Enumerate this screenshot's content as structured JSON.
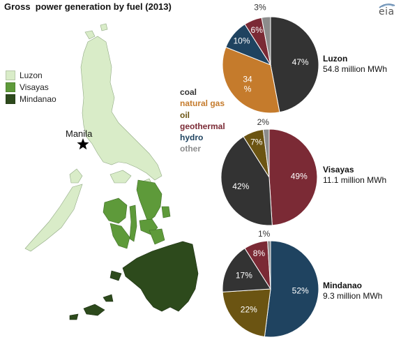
{
  "header": {
    "title": "Gross  power generation by fuel (2013)",
    "logo": "eia"
  },
  "map": {
    "legend": [
      {
        "label": "Luzon",
        "color": "#d9ecc8"
      },
      {
        "label": "Visayas",
        "color": "#5e9a3a"
      },
      {
        "label": "Mindanao",
        "color": "#2d4a1c"
      }
    ],
    "city": "Manila"
  },
  "fuels": [
    {
      "name": "coal",
      "color": "#333333"
    },
    {
      "name": "natural gas",
      "color": "#c57b2c"
    },
    {
      "name": "oil",
      "color": "#6b5412"
    },
    {
      "name": "geothermal",
      "color": "#7b2a35"
    },
    {
      "name": "hydro",
      "color": "#1f4360"
    },
    {
      "name": "other",
      "color": "#8c8c8c"
    }
  ],
  "chart_data": [
    {
      "type": "pie",
      "name": "Luzon",
      "caption": "54.8 million MWh",
      "slices": [
        {
          "fuel": "coal",
          "value": 47,
          "label": "47%"
        },
        {
          "fuel": "natural gas",
          "value": 34,
          "label": "34\n%"
        },
        {
          "fuel": "hydro",
          "value": 10,
          "label": "10%"
        },
        {
          "fuel": "geothermal",
          "value": 6,
          "label": "6%"
        },
        {
          "fuel": "other",
          "value": 3,
          "label": "3%"
        }
      ]
    },
    {
      "type": "pie",
      "name": "Visayas",
      "caption": "11.1 million MWh",
      "slices": [
        {
          "fuel": "geothermal",
          "value": 49,
          "label": "49%"
        },
        {
          "fuel": "coal",
          "value": 42,
          "label": "42%"
        },
        {
          "fuel": "oil",
          "value": 7,
          "label": "7%"
        },
        {
          "fuel": "other",
          "value": 2,
          "label": "2%"
        }
      ]
    },
    {
      "type": "pie",
      "name": "Mindanao",
      "caption": "9.3 million MWh",
      "slices": [
        {
          "fuel": "hydro",
          "value": 52,
          "label": "52%"
        },
        {
          "fuel": "oil",
          "value": 22,
          "label": "22%"
        },
        {
          "fuel": "coal",
          "value": 17,
          "label": "17%"
        },
        {
          "fuel": "geothermal",
          "value": 8,
          "label": "8%"
        },
        {
          "fuel": "other",
          "value": 1,
          "label": "1%"
        }
      ]
    }
  ]
}
